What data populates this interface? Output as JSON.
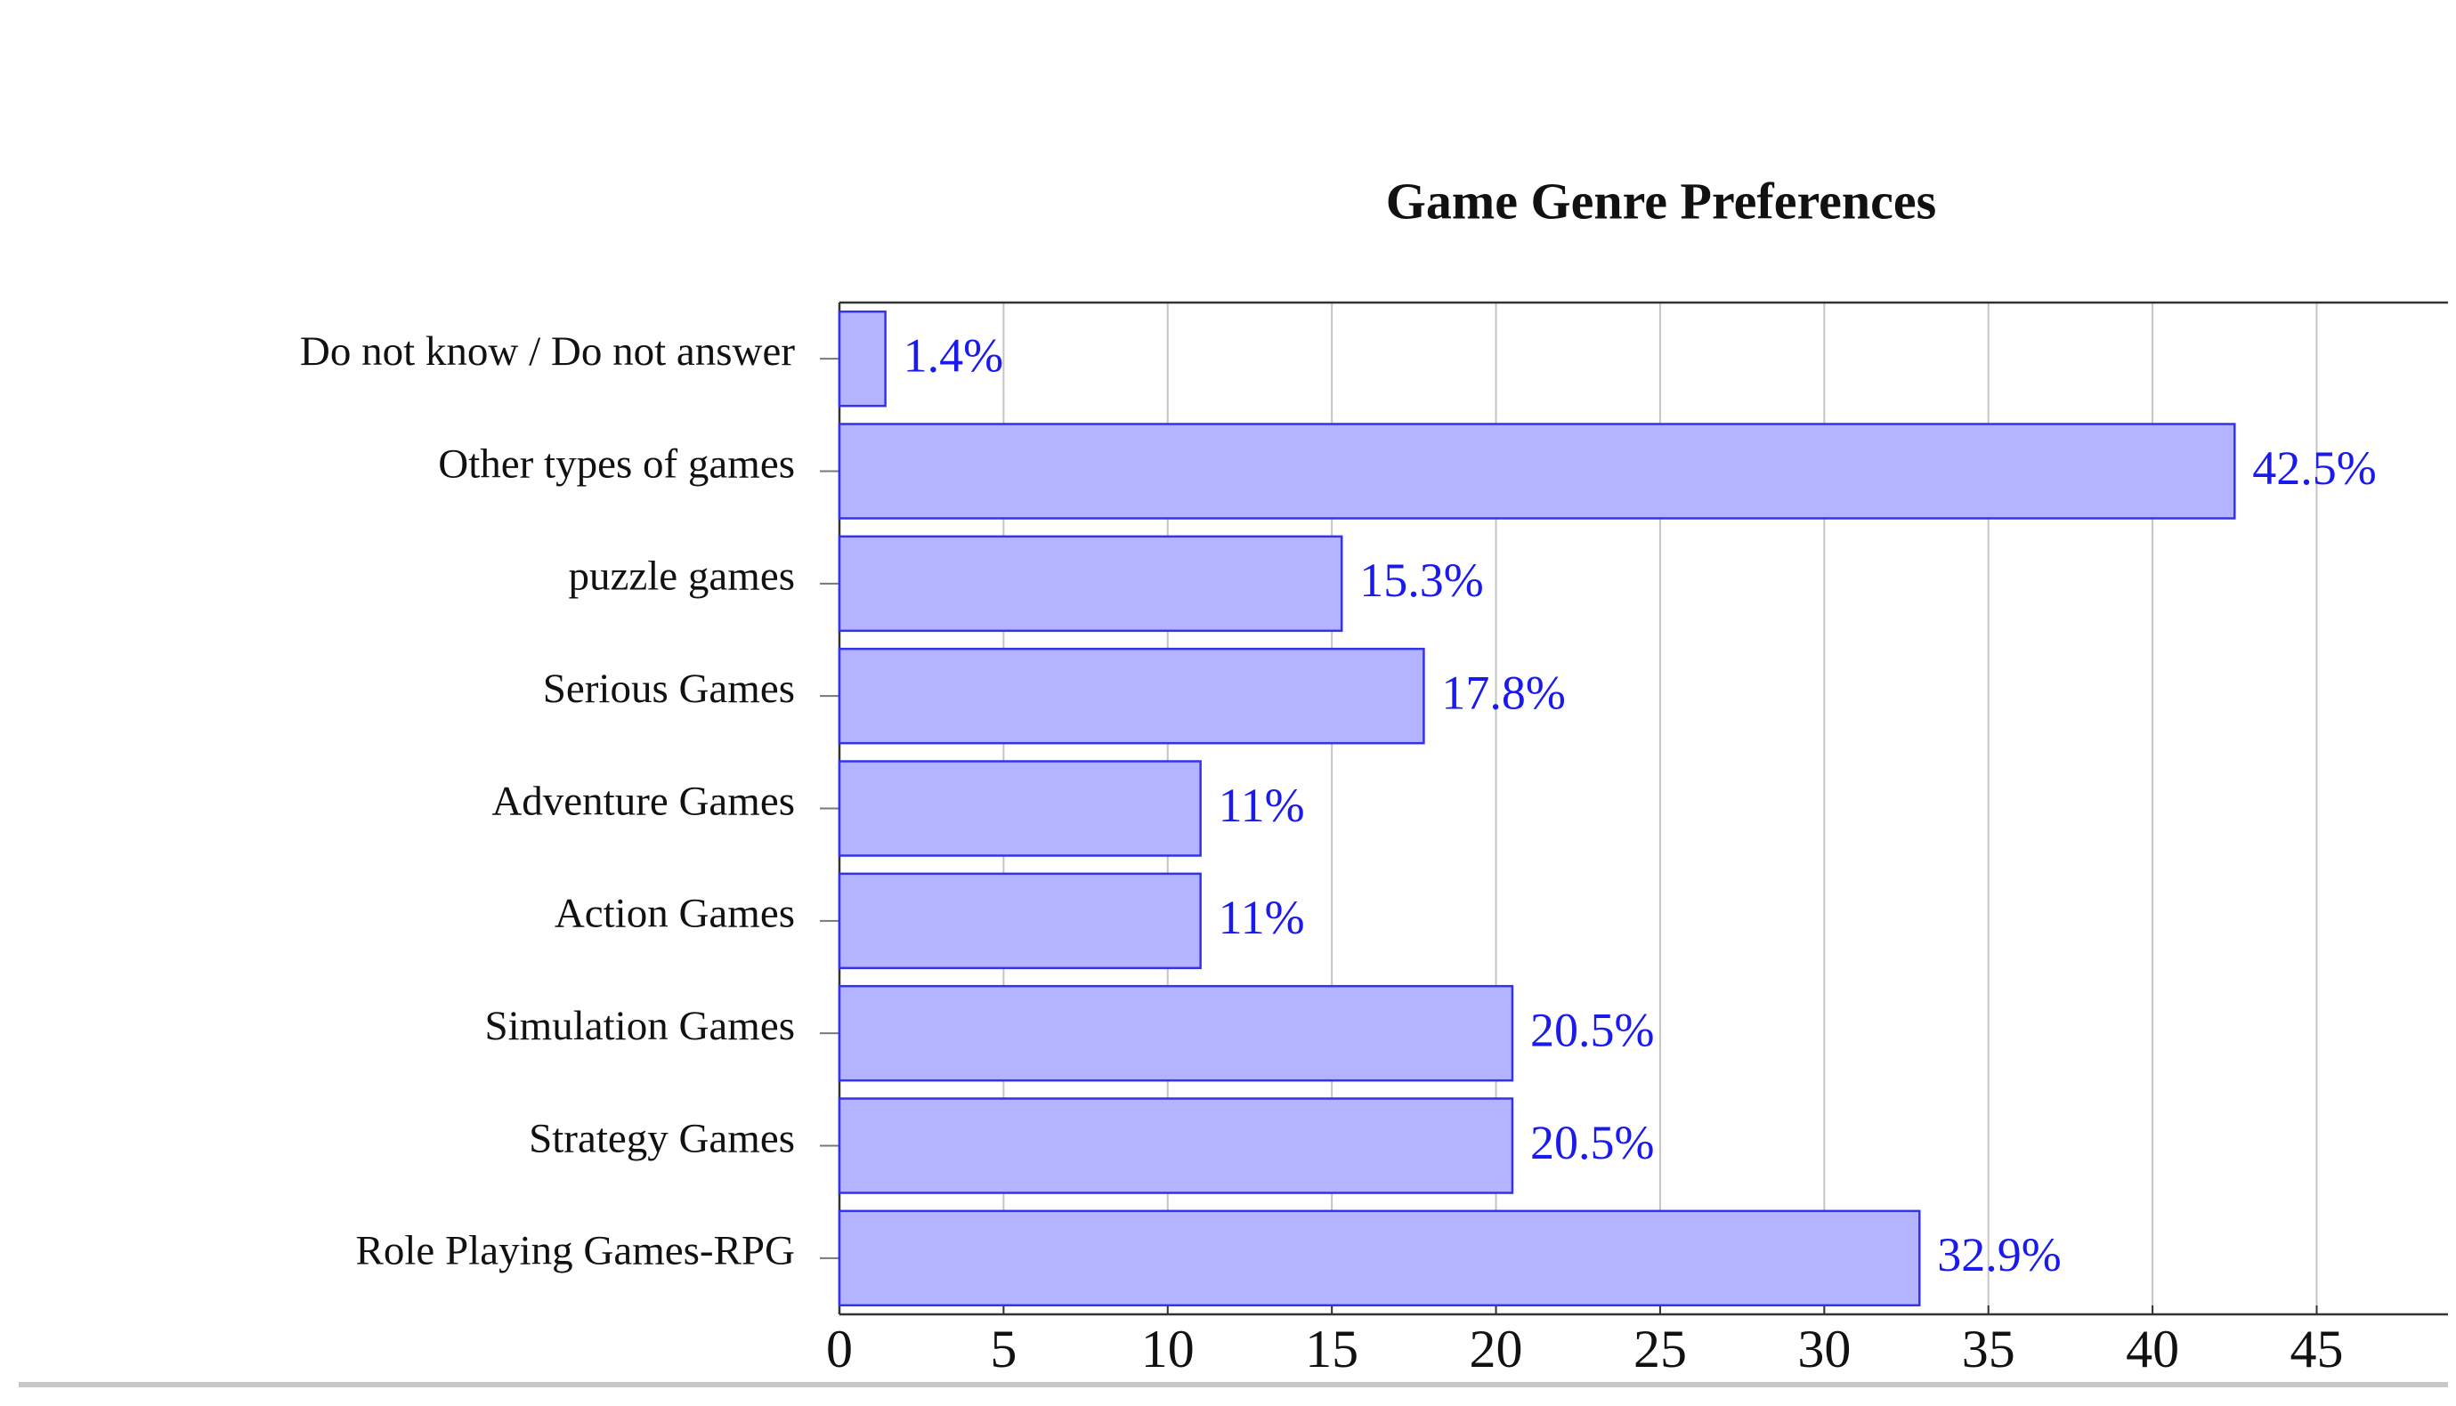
{
  "chart_data": {
    "type": "hbar",
    "title": "Game Genre Preferences",
    "categories": [
      "Do not know / Do not answer",
      "Other types of games",
      "puzzle games",
      "Serious Games",
      "Adventure Games",
      "Action Games",
      "Simulation Games",
      "Strategy Games",
      "Role Playing Games-RPG"
    ],
    "values": [
      1.4,
      42.5,
      15.3,
      17.8,
      11,
      11,
      20.5,
      20.5,
      32.9
    ],
    "value_labels": [
      "1.4%",
      "42.5%",
      "15.3%",
      "17.8%",
      "11%",
      "11%",
      "20.5%",
      "20.5%",
      "32.9%"
    ],
    "color": "#b3b3ff",
    "edge_color": "#3333ee",
    "label_color": "#1a1aee",
    "xlim": [
      0,
      49
    ],
    "xticks": [
      0,
      5,
      10,
      15,
      20,
      25,
      30,
      35,
      40,
      45
    ],
    "grid": true
  }
}
